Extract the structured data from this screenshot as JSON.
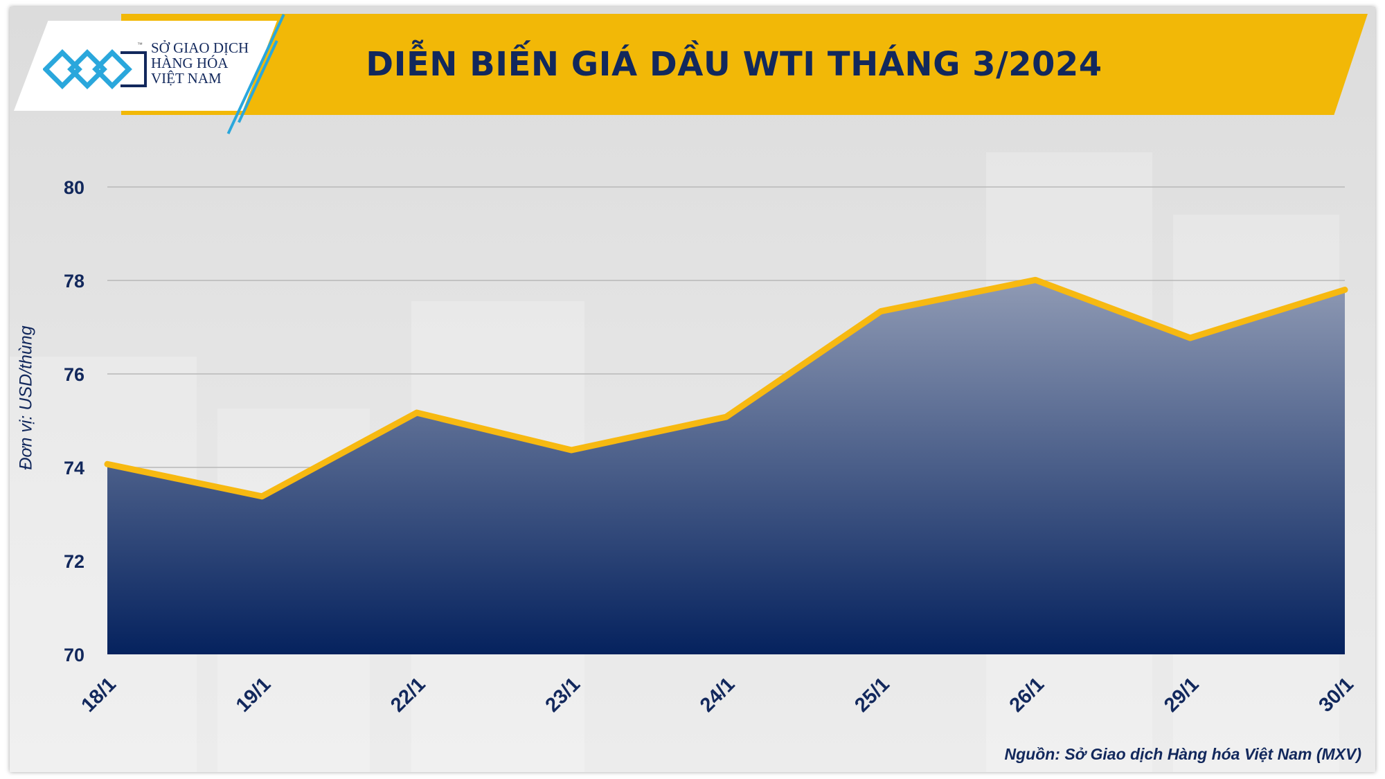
{
  "header": {
    "title": "DIỄN BIẾN GIÁ DẦU WTI THÁNG 3/2024",
    "logo_lines": [
      "SỞ GIAO DỊCH",
      "HÀNG HÓA",
      "VIỆT NAM"
    ],
    "logo_tm": "™"
  },
  "footer": {
    "source": "Nguồn: Sở Giao dịch Hàng hóa Việt Nam (MXV)"
  },
  "colors": {
    "banner": "#f2b807",
    "title_text": "#12285c",
    "line": "#f7b911",
    "area_top": "#8f9ab4",
    "area_bottom": "#05225e",
    "logo_accent": "#2aa7dc"
  },
  "chart_data": {
    "type": "area",
    "categories": [
      "18/1",
      "19/1",
      "22/1",
      "23/1",
      "24/1",
      "25/1",
      "26/1",
      "29/1",
      "30/1"
    ],
    "series": [
      {
        "values": [
          74.07,
          73.38,
          75.17,
          74.37,
          75.08,
          77.34,
          78.01,
          76.77,
          77.8
        ]
      }
    ],
    "ylabel": "Đơn vị: USD/thùng",
    "ylim": [
      70,
      80
    ],
    "yticks": [
      70,
      72,
      74,
      76,
      78,
      80
    ],
    "grid": true,
    "legend": "none"
  }
}
